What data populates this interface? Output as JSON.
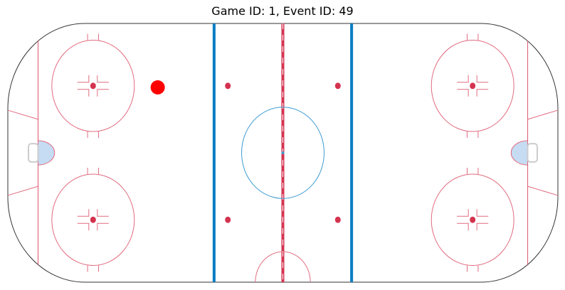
{
  "chart_data": {
    "type": "scatter",
    "title": "Game ID: 1, Event ID: 49",
    "xlabel": "",
    "ylabel": "",
    "xlim": [
      -100,
      100
    ],
    "ylim": [
      -42.5,
      42.5
    ],
    "grid": false,
    "rink": {
      "colors": {
        "boards": "#333333",
        "red_line": "#d4334f",
        "blue_line": "#0a7ec2",
        "center_circle": "#3d9bd1",
        "faceoff_circle": "#e06b7f",
        "crease": "#c5dcf3",
        "goal": "#cccccc"
      }
    },
    "series": [
      {
        "points": [
          {
            "x": -45.5,
            "y": 21.5
          }
        ],
        "color": "#ff0000"
      }
    ]
  }
}
